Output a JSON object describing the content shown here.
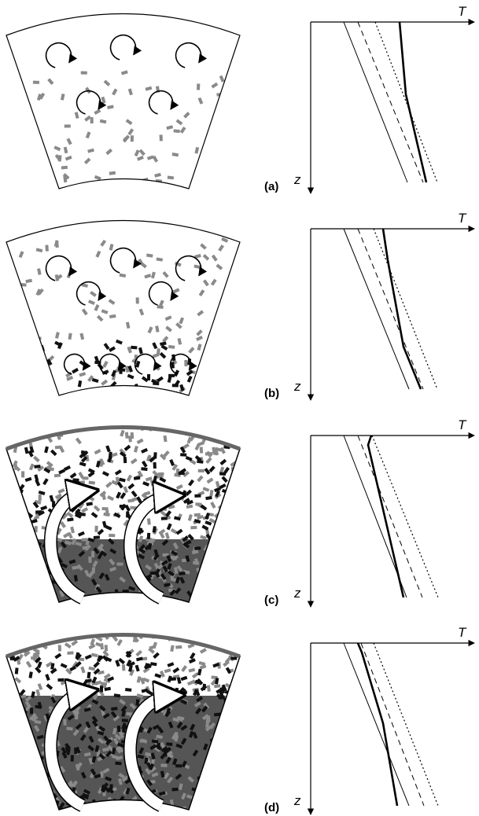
{
  "panels": [
    {
      "label": "(a)",
      "t_axis": "T",
      "z_axis": "z"
    },
    {
      "label": "(b)",
      "t_axis": "T",
      "z_axis": "z"
    },
    {
      "label": "(c)",
      "t_axis": "T",
      "z_axis": "z"
    },
    {
      "label": "(d)",
      "t_axis": "T",
      "z_axis": "z"
    }
  ]
}
